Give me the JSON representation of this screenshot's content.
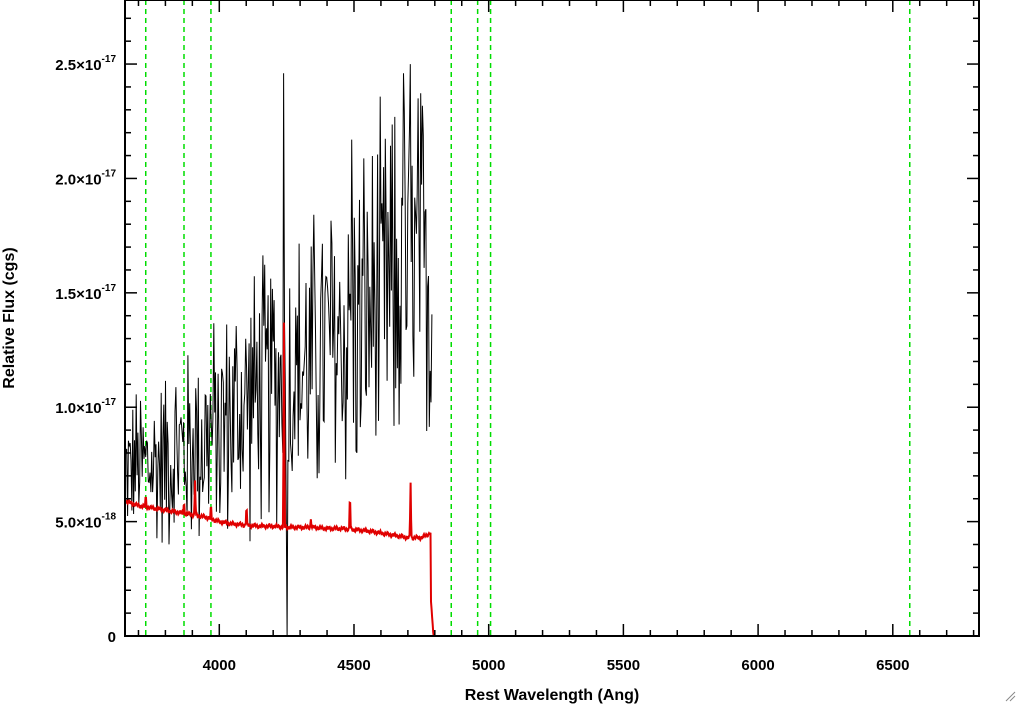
{
  "chart_data": {
    "type": "line",
    "xlabel": "Rest Wavelength (Ang)",
    "ylabel": "Relative Flux (cgs)",
    "xlim": [
      3650,
      6820
    ],
    "ylim": [
      0,
      2.78e-17
    ],
    "xticks": [
      {
        "value": 4000,
        "label": "4000"
      },
      {
        "value": 4500,
        "label": "4500"
      },
      {
        "value": 5000,
        "label": "5000"
      },
      {
        "value": 5500,
        "label": "5500"
      },
      {
        "value": 6000,
        "label": "6000"
      },
      {
        "value": 6500,
        "label": "6500"
      }
    ],
    "yticks": [
      {
        "value": 0,
        "label": "0",
        "mant": "0",
        "exp": ""
      },
      {
        "value": 5e-18,
        "label": "5.0×10-18",
        "mant": "5.0×10",
        "exp": "-18"
      },
      {
        "value": 1e-17,
        "label": "1.0×10-17",
        "mant": "1.0×10",
        "exp": "-17"
      },
      {
        "value": 1.5e-17,
        "label": "1.5×10-17",
        "mant": "1.5×10",
        "exp": "-17"
      },
      {
        "value": 2e-17,
        "label": "2.0×10-17",
        "mant": "2.0×10",
        "exp": "-17"
      },
      {
        "value": 2.5e-17,
        "label": "2.5×10-17",
        "mant": "2.5×10",
        "exp": "-17"
      }
    ],
    "reference_lines": {
      "color": "#00dd00",
      "style": "dashed",
      "x": [
        3727,
        3869,
        3969,
        4861,
        4959,
        5007,
        6563
      ]
    },
    "series": [
      {
        "color": "#000000",
        "style": "noisy spectrum",
        "x": [
          3650,
          3700,
          3750,
          3800,
          3850,
          3900,
          3950,
          4000,
          4050,
          4100,
          4150,
          4200,
          4250,
          4300,
          4350,
          4400,
          4450,
          4500,
          4550,
          4600,
          4650,
          4700,
          4750,
          4790
        ],
        "y": [
          7.2e-18,
          7.5e-18,
          7.4e-18,
          7.8e-18,
          8e-18,
          8.3e-18,
          8.7e-18,
          9e-18,
          9.6e-18,
          1.02e-17,
          1.06e-17,
          1.1e-17,
          1.13e-17,
          1.16e-17,
          1.2e-17,
          1.26e-17,
          1.3e-17,
          1.35e-17,
          1.4e-17,
          1.45e-17,
          1.5e-17,
          1.55e-17,
          1.58e-17,
          1.5e-17
        ],
        "noise": [
          2.2e-18,
          3e-18,
          3.2e-18,
          3.4e-18,
          3.6e-18,
          3.8e-18,
          4e-18,
          4.2e-18,
          4.5e-18,
          4.8e-18,
          5e-18,
          5.2e-18,
          5.3e-18,
          5.4e-18,
          5.6e-18,
          5.8e-18,
          6e-18,
          6.2e-18,
          6.5e-18,
          6.8e-18,
          7e-18,
          7.2e-18,
          7.2e-18,
          6e-18
        ],
        "spikes": [
          {
            "x": 4240,
            "y": 2.46e-17
          },
          {
            "x": 4250,
            "y": 0
          },
          {
            "x": 4490,
            "y": 2.17e-17
          },
          {
            "x": 4682,
            "y": 2.46e-17
          },
          {
            "x": 4710,
            "y": 2.5e-17
          },
          {
            "x": 4738,
            "y": 2.35e-17
          }
        ]
      },
      {
        "color": "#e00000",
        "style": "model",
        "x": [
          3650,
          3700,
          3750,
          3800,
          3850,
          3900,
          3950,
          4000,
          4050,
          4100,
          4150,
          4200,
          4250,
          4300,
          4350,
          4400,
          4450,
          4500,
          4550,
          4600,
          4650,
          4700,
          4750,
          4785,
          4786,
          4795,
          6820
        ],
        "y": [
          5.9e-18,
          5.7e-18,
          5.6e-18,
          5.5e-18,
          5.4e-18,
          5.3e-18,
          5.2e-18,
          5e-18,
          4.9e-18,
          4.85e-18,
          4.8e-18,
          4.8e-18,
          4.75e-18,
          4.75e-18,
          4.75e-18,
          4.7e-18,
          4.7e-18,
          4.65e-18,
          4.6e-18,
          4.5e-18,
          4.4e-18,
          4.3e-18,
          4.3e-18,
          4.5e-18,
          1.5e-18,
          0,
          0
        ],
        "emission_lines": [
          {
            "x": 3727,
            "y": 6.2e-18
          },
          {
            "x": 3869,
            "y": 5.9e-18
          },
          {
            "x": 3910,
            "y": 6.8e-18
          },
          {
            "x": 3969,
            "y": 5.8e-18
          },
          {
            "x": 4101,
            "y": 5.8e-18
          },
          {
            "x": 4240,
            "y": 1.37e-17
          },
          {
            "x": 4340,
            "y": 5.1e-18
          },
          {
            "x": 4485,
            "y": 6.4e-18
          },
          {
            "x": 4710,
            "y": 6.7e-18
          }
        ]
      }
    ]
  }
}
